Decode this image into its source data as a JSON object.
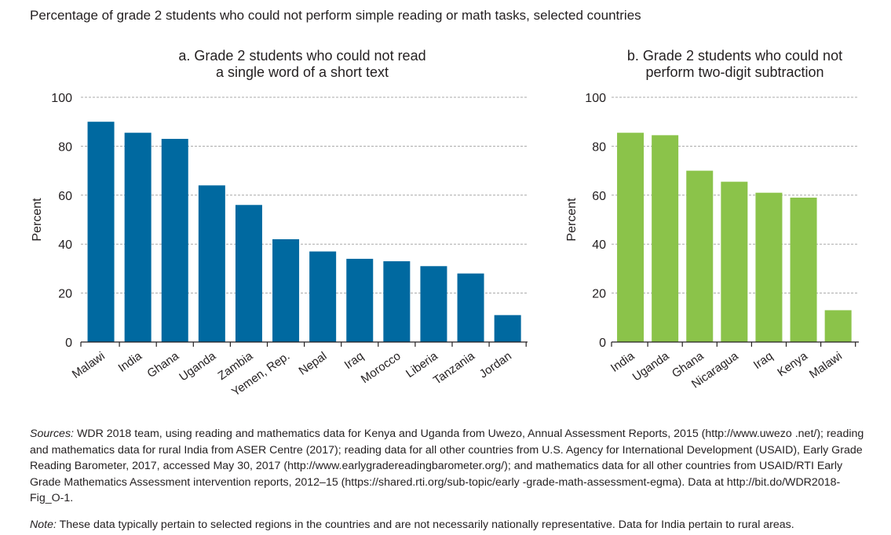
{
  "figure_title": "Percentage of grade 2 students who could not perform simple reading or math tasks, selected countries",
  "colors": {
    "panel_a": "#0069a0",
    "panel_b": "#8bc34a",
    "grid": "#a8a8a8",
    "axis": "#231f20"
  },
  "chart_data": [
    {
      "type": "bar",
      "title_lines": [
        "a. Grade 2 students who could not read",
        "a single word of a short text"
      ],
      "categories": [
        "Malawi",
        "India",
        "Ghana",
        "Uganda",
        "Zambia",
        "Yemen, Rep.",
        "Nepal",
        "Iraq",
        "Morocco",
        "Liberia",
        "Tanzania",
        "Jordan"
      ],
      "values": [
        90,
        85.5,
        83,
        64,
        56,
        42,
        37,
        34,
        33,
        31,
        28,
        11
      ],
      "ylabel": "Percent",
      "ylim": [
        0,
        100
      ],
      "yticks": [
        "0",
        "20",
        "40",
        "60",
        "80",
        "100"
      ],
      "grid": true
    },
    {
      "type": "bar",
      "title_lines": [
        "b. Grade 2 students who could not",
        "perform two-digit subtraction"
      ],
      "categories": [
        "India",
        "Uganda",
        "Ghana",
        "Nicaragua",
        "Iraq",
        "Kenya",
        "Malawi"
      ],
      "values": [
        85.5,
        84.5,
        70,
        65.5,
        61,
        59,
        13
      ],
      "ylabel": "Percent",
      "ylim": [
        0,
        100
      ],
      "yticks": [
        "0",
        "20",
        "40",
        "60",
        "80",
        "100"
      ],
      "grid": true
    }
  ],
  "sources_label": "Sources:",
  "sources_text": " WDR 2018 team, using reading and mathematics data for Kenya and Uganda from Uwezo, Annual Assessment Reports, 2015 (http://www.uwezo .net/); reading and mathematics data for rural India from ASER Centre (2017); reading data for all other countries from U.S. Agency for International Development (USAID), Early Grade Reading Barometer, 2017, accessed May 30, 2017 (http://www.earlygradereadingbarometer.org/); and mathematics data for all other countries from USAID/RTI Early Grade Mathematics Assessment intervention reports, 2012–15 (https://shared.rti.org/sub-topic/early -grade-math-assessment-egma). Data at http://bit.do/WDR2018-Fig_O-1.",
  "note_label": "Note:",
  "note_text": " These data typically pertain to selected regions in the countries and are not necessarily nationally representative. Data for India pertain to rural areas."
}
